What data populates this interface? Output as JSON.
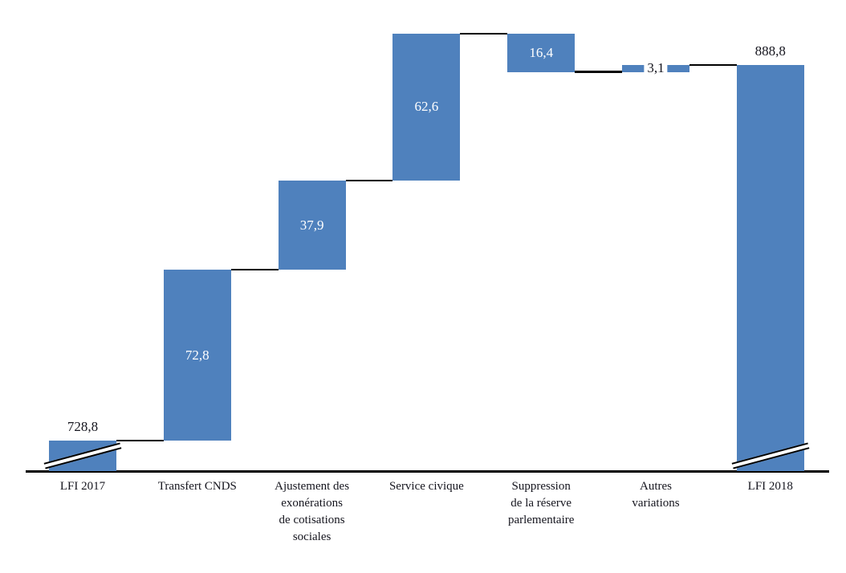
{
  "figure": {
    "background": "#ffffff"
  },
  "chart_data": {
    "type": "bar",
    "subtype": "waterfall",
    "title": "",
    "xlabel": "",
    "ylabel": "",
    "legend": false,
    "grid": false,
    "categories": [
      "LFI 2017",
      "Transfert CNDS",
      "Ajustement des\nexonérations\nde cotisations\nsociales",
      "Service civique",
      "Suppression\nde la réserve\nparlementaire",
      "Autres\nvariations",
      "LFI 2018"
    ],
    "steps": [
      {
        "id": "lfi-2017",
        "label": "LFI 2017",
        "role": "total",
        "value": 728.8,
        "display": "728,8",
        "value_label_position": "above",
        "axis_break": true
      },
      {
        "id": "transfert-cnds",
        "label": "Transfert CNDS",
        "role": "increase",
        "value": 72.8,
        "display": "72,8",
        "value_label_position": "inside",
        "axis_break": false
      },
      {
        "id": "ajustement-exonerations",
        "label": "Ajustement des\nexonérations\nde cotisations\nsociales",
        "role": "increase",
        "value": 37.9,
        "display": "37,9",
        "value_label_position": "inside",
        "axis_break": false
      },
      {
        "id": "service-civique",
        "label": "Service civique",
        "role": "increase",
        "value": 62.6,
        "display": "62,6",
        "value_label_position": "inside",
        "axis_break": false
      },
      {
        "id": "suppression-reserve",
        "label": "Suppression\nde la réserve\nparlementaire",
        "role": "decrease",
        "value": 16.4,
        "display": "16,4",
        "value_label_position": "inside",
        "axis_break": false
      },
      {
        "id": "autres-variations",
        "label": "Autres\nvariations",
        "role": "increase",
        "value": 3.1,
        "display": "3,1",
        "value_label_position": "overlay",
        "axis_break": false
      },
      {
        "id": "lfi-2018",
        "label": "LFI 2018",
        "role": "total",
        "value": 888.8,
        "display": "888,8",
        "value_label_position": "above",
        "axis_break": true
      }
    ],
    "running_totals": [
      728.8,
      801.6,
      839.5,
      902.1,
      885.7,
      888.8,
      888.8
    ],
    "colors": {
      "bar": "#4f81bd",
      "connector": "#000000",
      "axis": "#000000",
      "value_label_inside": "#ffffff",
      "value_label_outside": "#15151e",
      "category_label": "#15151e",
      "background": "#ffffff"
    },
    "layout_hints": {
      "value_axis_hidden": true,
      "axis_broken_at_bottom": true,
      "baseline_value_approx": 716,
      "ylim_shown": [
        716,
        902.1
      ],
      "legend_position": "none"
    }
  }
}
